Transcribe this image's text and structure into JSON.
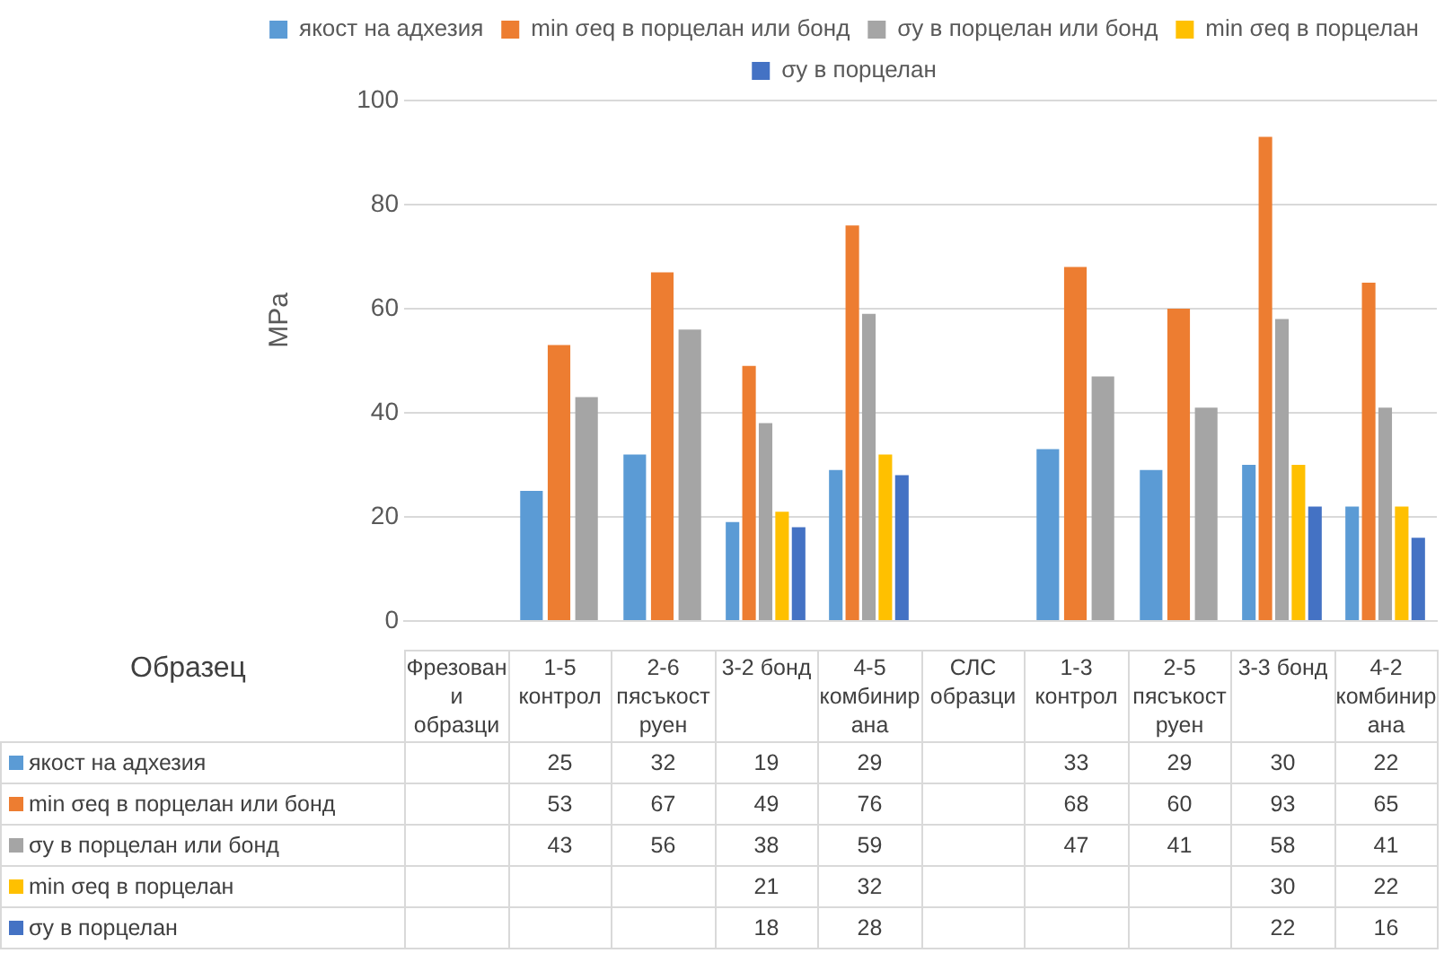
{
  "chart_data": {
    "type": "bar",
    "ylabel": "MPa",
    "xlabel": "Образец",
    "categories": [
      "Фрезовани образци",
      "1-5 контрол",
      "2-6 пясъкоструен",
      "3-2 бонд",
      "4-5 комбинирана",
      "СЛС образци",
      "1-3 контрол",
      "2-5 пясъкоструен",
      "3-3 бонд",
      "4-2 комбинирана"
    ],
    "series": [
      {
        "name": "якост на адхезия",
        "color": "#5b9bd5",
        "values": [
          null,
          25,
          32,
          19,
          29,
          null,
          33,
          29,
          30,
          22
        ]
      },
      {
        "name": "min σeq в порцелан или бонд",
        "color": "#ed7d31",
        "values": [
          null,
          53,
          67,
          49,
          76,
          null,
          68,
          60,
          93,
          65
        ]
      },
      {
        "name": "σy в порцелан или бонд",
        "color": "#a5a5a5",
        "values": [
          null,
          43,
          56,
          38,
          59,
          null,
          47,
          41,
          58,
          41
        ]
      },
      {
        "name": "min σeq в порцелан",
        "color": "#ffc000",
        "values": [
          null,
          null,
          null,
          21,
          32,
          null,
          null,
          null,
          30,
          22
        ]
      },
      {
        "name": "σy в порцелан",
        "color": "#4472c4",
        "values": [
          null,
          null,
          null,
          18,
          28,
          null,
          null,
          null,
          22,
          16
        ]
      }
    ],
    "ylim": [
      0,
      100
    ],
    "yticks": [
      0,
      20,
      40,
      60,
      80,
      100
    ],
    "grid": "y",
    "legend": "top",
    "data_labels": true
  }
}
